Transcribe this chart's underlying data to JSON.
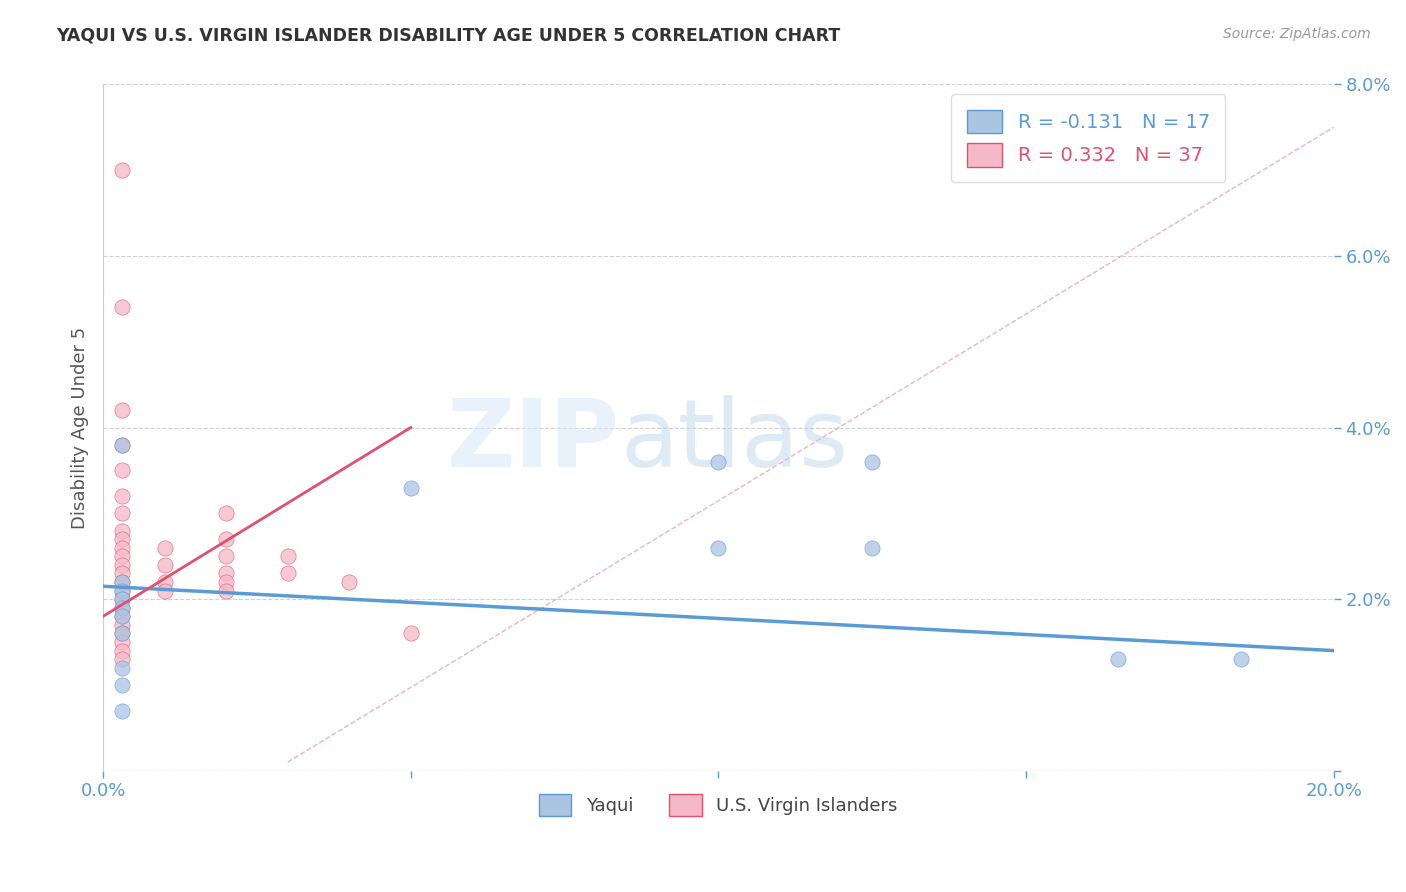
{
  "title": "YAQUI VS U.S. VIRGIN ISLANDER DISABILITY AGE UNDER 5 CORRELATION CHART",
  "source": "Source: ZipAtlas.com",
  "ylabel": "Disability Age Under 5",
  "xlim": [
    0.0,
    0.2
  ],
  "ylim": [
    0.0,
    0.08
  ],
  "xticks": [
    0.0,
    0.05,
    0.1,
    0.15,
    0.2
  ],
  "xticklabels": [
    "0.0%",
    "",
    "",
    "",
    "20.0%"
  ],
  "yticks": [
    0.0,
    0.02,
    0.04,
    0.06,
    0.08
  ],
  "yticklabels": [
    "",
    "2.0%",
    "4.0%",
    "6.0%",
    "8.0%"
  ],
  "legend_R_blue": "-0.131",
  "legend_N_blue": "17",
  "legend_R_pink": "0.332",
  "legend_N_pink": "37",
  "legend_label_blue": "Yaqui",
  "legend_label_pink": "U.S. Virgin Islanders",
  "blue_color": "#aac4e2",
  "pink_color": "#f5b8c8",
  "trendline_blue_color": "#5b9bd5",
  "trendline_pink_color": "#e05070",
  "ref_line_color": "#e8a0b0",
  "watermark_zip": "ZIP",
  "watermark_atlas": "atlas",
  "blue_scatter": [
    [
      0.003,
      0.038
    ],
    [
      0.003,
      0.022
    ],
    [
      0.003,
      0.021
    ],
    [
      0.003,
      0.02
    ],
    [
      0.003,
      0.019
    ],
    [
      0.003,
      0.018
    ],
    [
      0.003,
      0.016
    ],
    [
      0.003,
      0.012
    ],
    [
      0.003,
      0.01
    ],
    [
      0.003,
      0.007
    ],
    [
      0.05,
      0.033
    ],
    [
      0.1,
      0.036
    ],
    [
      0.1,
      0.026
    ],
    [
      0.125,
      0.036
    ],
    [
      0.125,
      0.026
    ],
    [
      0.165,
      0.013
    ],
    [
      0.185,
      0.013
    ]
  ],
  "pink_scatter": [
    [
      0.003,
      0.07
    ],
    [
      0.003,
      0.054
    ],
    [
      0.003,
      0.042
    ],
    [
      0.003,
      0.038
    ],
    [
      0.003,
      0.035
    ],
    [
      0.003,
      0.032
    ],
    [
      0.003,
      0.03
    ],
    [
      0.003,
      0.028
    ],
    [
      0.003,
      0.027
    ],
    [
      0.003,
      0.026
    ],
    [
      0.003,
      0.025
    ],
    [
      0.003,
      0.024
    ],
    [
      0.003,
      0.023
    ],
    [
      0.003,
      0.022
    ],
    [
      0.003,
      0.021
    ],
    [
      0.003,
      0.02
    ],
    [
      0.003,
      0.019
    ],
    [
      0.003,
      0.018
    ],
    [
      0.003,
      0.017
    ],
    [
      0.003,
      0.016
    ],
    [
      0.003,
      0.015
    ],
    [
      0.003,
      0.014
    ],
    [
      0.003,
      0.013
    ],
    [
      0.01,
      0.026
    ],
    [
      0.01,
      0.024
    ],
    [
      0.01,
      0.022
    ],
    [
      0.01,
      0.021
    ],
    [
      0.02,
      0.03
    ],
    [
      0.02,
      0.027
    ],
    [
      0.02,
      0.025
    ],
    [
      0.02,
      0.023
    ],
    [
      0.02,
      0.022
    ],
    [
      0.02,
      0.021
    ],
    [
      0.03,
      0.025
    ],
    [
      0.03,
      0.023
    ],
    [
      0.04,
      0.022
    ],
    [
      0.05,
      0.016
    ]
  ],
  "blue_trend_x": [
    0.0,
    0.2
  ],
  "blue_trend_y": [
    0.0215,
    0.014
  ],
  "pink_trend_x": [
    0.0,
    0.05
  ],
  "pink_trend_y": [
    0.018,
    0.04
  ]
}
